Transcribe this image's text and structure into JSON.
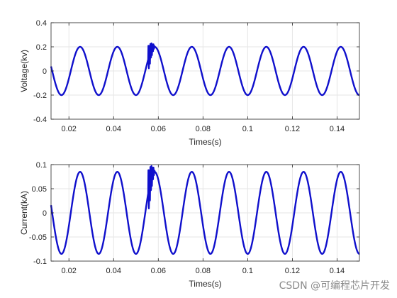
{
  "watermark": "CSDN @可编程芯片开发",
  "colors": {
    "series": "#1010cc",
    "grid": "#e6e6e6",
    "axis": "#262626"
  },
  "chart_data": [
    {
      "type": "line",
      "title": "",
      "xlabel": "Times(s)",
      "ylabel": "Voltage(kv)",
      "xlim": [
        0.012,
        0.15
      ],
      "ylim": [
        -0.4,
        0.4
      ],
      "xticks": [
        0.02,
        0.04,
        0.06,
        0.08,
        0.1,
        0.12,
        0.14
      ],
      "xtick_labels": [
        "0.02",
        "0.04",
        "0.06",
        "0.08",
        "0.1",
        "0.12",
        "0.14"
      ],
      "yticks": [
        -0.4,
        -0.2,
        0,
        0.2,
        0.4
      ],
      "ytick_labels": [
        "-0.4",
        "-0.2",
        "0",
        "0.2",
        "0.4"
      ],
      "grid": true,
      "series": [
        {
          "amplitude": 0.2,
          "frequency_hz": 60,
          "peak_time_s": 0.025,
          "transient_window_s": [
            0.0555,
            0.0585
          ],
          "color": "#1010cc"
        }
      ]
    },
    {
      "type": "line",
      "title": "",
      "xlabel": "Times(s)",
      "ylabel": "Current(kA)",
      "xlim": [
        0.012,
        0.15
      ],
      "ylim": [
        -0.1,
        0.1
      ],
      "xticks": [
        0.02,
        0.04,
        0.06,
        0.08,
        0.1,
        0.12,
        0.14
      ],
      "xtick_labels": [
        "0.02",
        "0.04",
        "0.06",
        "0.08",
        "0.1",
        "0.12",
        "0.14"
      ],
      "yticks": [
        -0.1,
        -0.05,
        0,
        0.05,
        0.1
      ],
      "ytick_labels": [
        "-0.1",
        "-0.05",
        "0",
        "0.05",
        "0.1"
      ],
      "grid": true,
      "series": [
        {
          "amplitude": 0.085,
          "frequency_hz": 60,
          "peak_time_s": 0.025,
          "transient_window_s": [
            0.0555,
            0.0585
          ],
          "color": "#1010cc"
        }
      ]
    }
  ]
}
